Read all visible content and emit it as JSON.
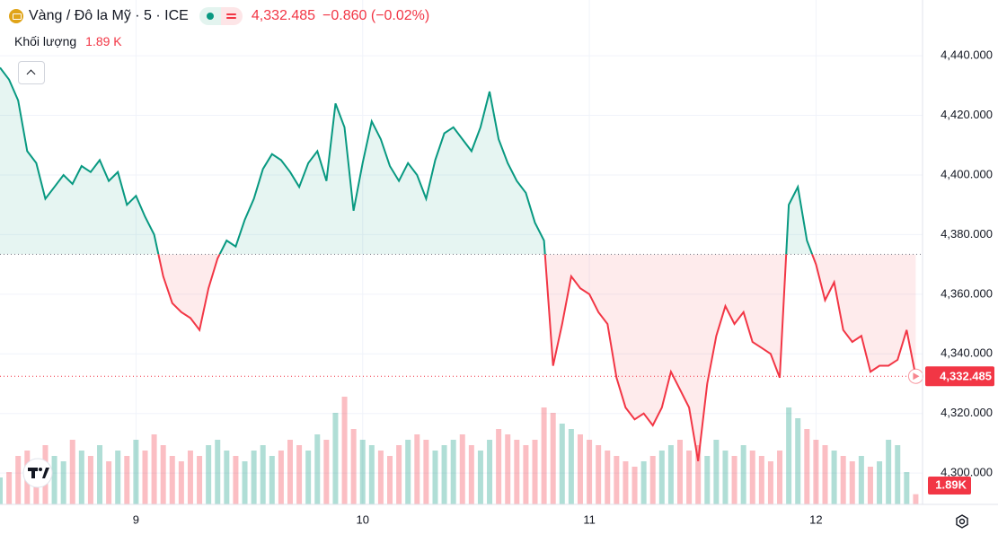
{
  "chart_data": {
    "type": "baseline",
    "title": "Vàng / Đô la Mỹ · 5 · ICE",
    "last_label": "4,332.485",
    "change_label": "−0.860 (−0.02%)",
    "up_color": "#089981",
    "down_color": "#f23645",
    "grid": true,
    "baseline": 4373.4,
    "xlim": [
      8.4,
      12.47
    ],
    "xticks": [
      9,
      10,
      11,
      12
    ],
    "ylim": [
      4289.5,
      4458.7
    ],
    "yticks": [
      {
        "value": 4300,
        "label": "4,300.000"
      },
      {
        "value": 4320,
        "label": "4,320.000"
      },
      {
        "value": 4340,
        "label": "4,340.000"
      },
      {
        "value": 4360,
        "label": "4,360.000"
      },
      {
        "value": 4380,
        "label": "4,380.000"
      },
      {
        "value": 4400,
        "label": "4,400.000"
      },
      {
        "value": 4420,
        "label": "4,420.000"
      },
      {
        "value": 4440,
        "label": "4,440.000"
      }
    ],
    "x": [
      8.4,
      8.44,
      8.48,
      8.52,
      8.56,
      8.6,
      8.64,
      8.68,
      8.72,
      8.76,
      8.8,
      8.84,
      8.88,
      8.92,
      8.96,
      9.0,
      9.04,
      9.08,
      9.12,
      9.16,
      9.2,
      9.24,
      9.28,
      9.32,
      9.36,
      9.4,
      9.44,
      9.48,
      9.52,
      9.56,
      9.6,
      9.64,
      9.68,
      9.72,
      9.76,
      9.8,
      9.84,
      9.88,
      9.92,
      9.96,
      10.0,
      10.04,
      10.08,
      10.12,
      10.16,
      10.2,
      10.24,
      10.28,
      10.32,
      10.36,
      10.4,
      10.44,
      10.48,
      10.52,
      10.56,
      10.6,
      10.64,
      10.68,
      10.72,
      10.76,
      10.8,
      10.84,
      10.88,
      10.92,
      10.96,
      11.0,
      11.04,
      11.08,
      11.12,
      11.16,
      11.2,
      11.24,
      11.28,
      11.32,
      11.36,
      11.4,
      11.44,
      11.48,
      11.52,
      11.56,
      11.6,
      11.64,
      11.68,
      11.72,
      11.76,
      11.8,
      11.84,
      11.88,
      11.92,
      11.96,
      12.0,
      12.04,
      12.08,
      12.12,
      12.16,
      12.2,
      12.24,
      12.28,
      12.32,
      12.36,
      12.4,
      12.44
    ],
    "values": [
      4436,
      4432,
      4425,
      4408,
      4404,
      4392,
      4396,
      4400,
      4397,
      4403,
      4401,
      4405,
      4398,
      4401,
      4390,
      4393,
      4386,
      4380,
      4366,
      4357,
      4354,
      4352,
      4348,
      4362,
      4372,
      4378,
      4376,
      4385,
      4392,
      4402,
      4407,
      4405,
      4401,
      4396,
      4404,
      4408,
      4398,
      4424,
      4416,
      4388,
      4404,
      4418,
      4412,
      4403,
      4398,
      4404,
      4400,
      4392,
      4405,
      4414,
      4416,
      4412,
      4408,
      4416,
      4428,
      4412,
      4404,
      4398,
      4394,
      4384,
      4378,
      4336,
      4350,
      4366,
      4362,
      4360,
      4354,
      4350,
      4332,
      4322,
      4318,
      4320,
      4316,
      4322,
      4334,
      4328,
      4322,
      4304,
      4330,
      4346,
      4356,
      4350,
      4354,
      4344,
      4342,
      4340,
      4332,
      4390,
      4396,
      4378,
      4370,
      4358,
      4364,
      4348,
      4344,
      4346,
      4334,
      4336,
      4336,
      4338,
      4348,
      4332.485
    ],
    "volume": {
      "name": "Khối lượng",
      "last_label": "1.89 K",
      "axis_label": "1.89K",
      "values": [
        5,
        6,
        9,
        10,
        8,
        11,
        9,
        8,
        12,
        10,
        9,
        11,
        8,
        10,
        9,
        12,
        10,
        13,
        11,
        9,
        8,
        10,
        9,
        11,
        12,
        10,
        9,
        8,
        10,
        11,
        9,
        10,
        12,
        11,
        10,
        13,
        12,
        17,
        20,
        14,
        12,
        11,
        10,
        9,
        11,
        12,
        13,
        12,
        10,
        11,
        12,
        13,
        11,
        10,
        12,
        14,
        13,
        12,
        11,
        12,
        18,
        17,
        15,
        14,
        13,
        12,
        11,
        10,
        9,
        8,
        7,
        8,
        9,
        10,
        11,
        12,
        10,
        11,
        9,
        12,
        10,
        9,
        11,
        10,
        9,
        8,
        10,
        18,
        16,
        14,
        12,
        11,
        10,
        9,
        8,
        9,
        7,
        8,
        12,
        11,
        6,
        1.89
      ]
    }
  }
}
